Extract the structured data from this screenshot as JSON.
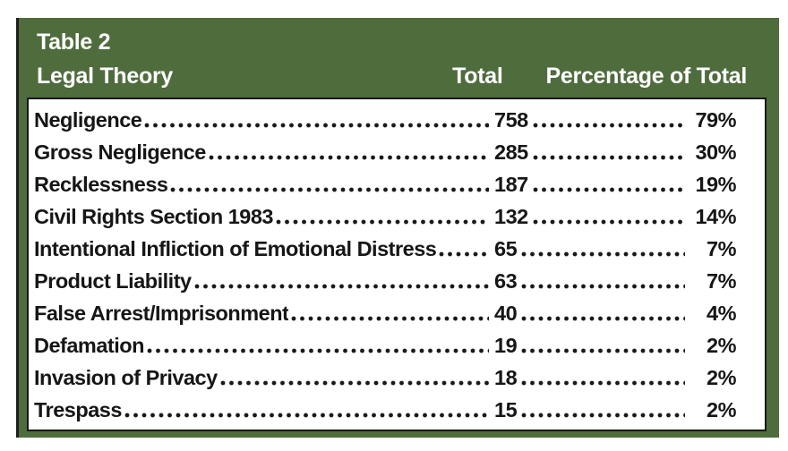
{
  "table": {
    "title": "Table 2",
    "columns": [
      "Legal Theory",
      "Total",
      "Percentage of Total"
    ],
    "rows": [
      {
        "theory": "Negligence",
        "total": "758",
        "percentage": "79%"
      },
      {
        "theory": "Gross Negligence",
        "total": "285",
        "percentage": "30%"
      },
      {
        "theory": "Recklessness",
        "total": "187",
        "percentage": "19%"
      },
      {
        "theory": "Civil Rights Section 1983",
        "total": "132",
        "percentage": "14%"
      },
      {
        "theory": "Intentional Infliction of Emotional Distress",
        "total": "65",
        "percentage": "7%"
      },
      {
        "theory": "Product Liability",
        "total": "63",
        "percentage": "7%"
      },
      {
        "theory": "False Arrest/Imprisonment",
        "total": "40",
        "percentage": "4%"
      },
      {
        "theory": "Defamation",
        "total": "19",
        "percentage": "2%"
      },
      {
        "theory": "Invasion of Privacy",
        "total": "18",
        "percentage": "2%"
      },
      {
        "theory": "Trespass",
        "total": "15",
        "percentage": "2%"
      }
    ],
    "colors": {
      "header_green": "#4f6c3d",
      "body_background": "#ffffff",
      "text": "#161616",
      "keyline": "#181818"
    }
  }
}
